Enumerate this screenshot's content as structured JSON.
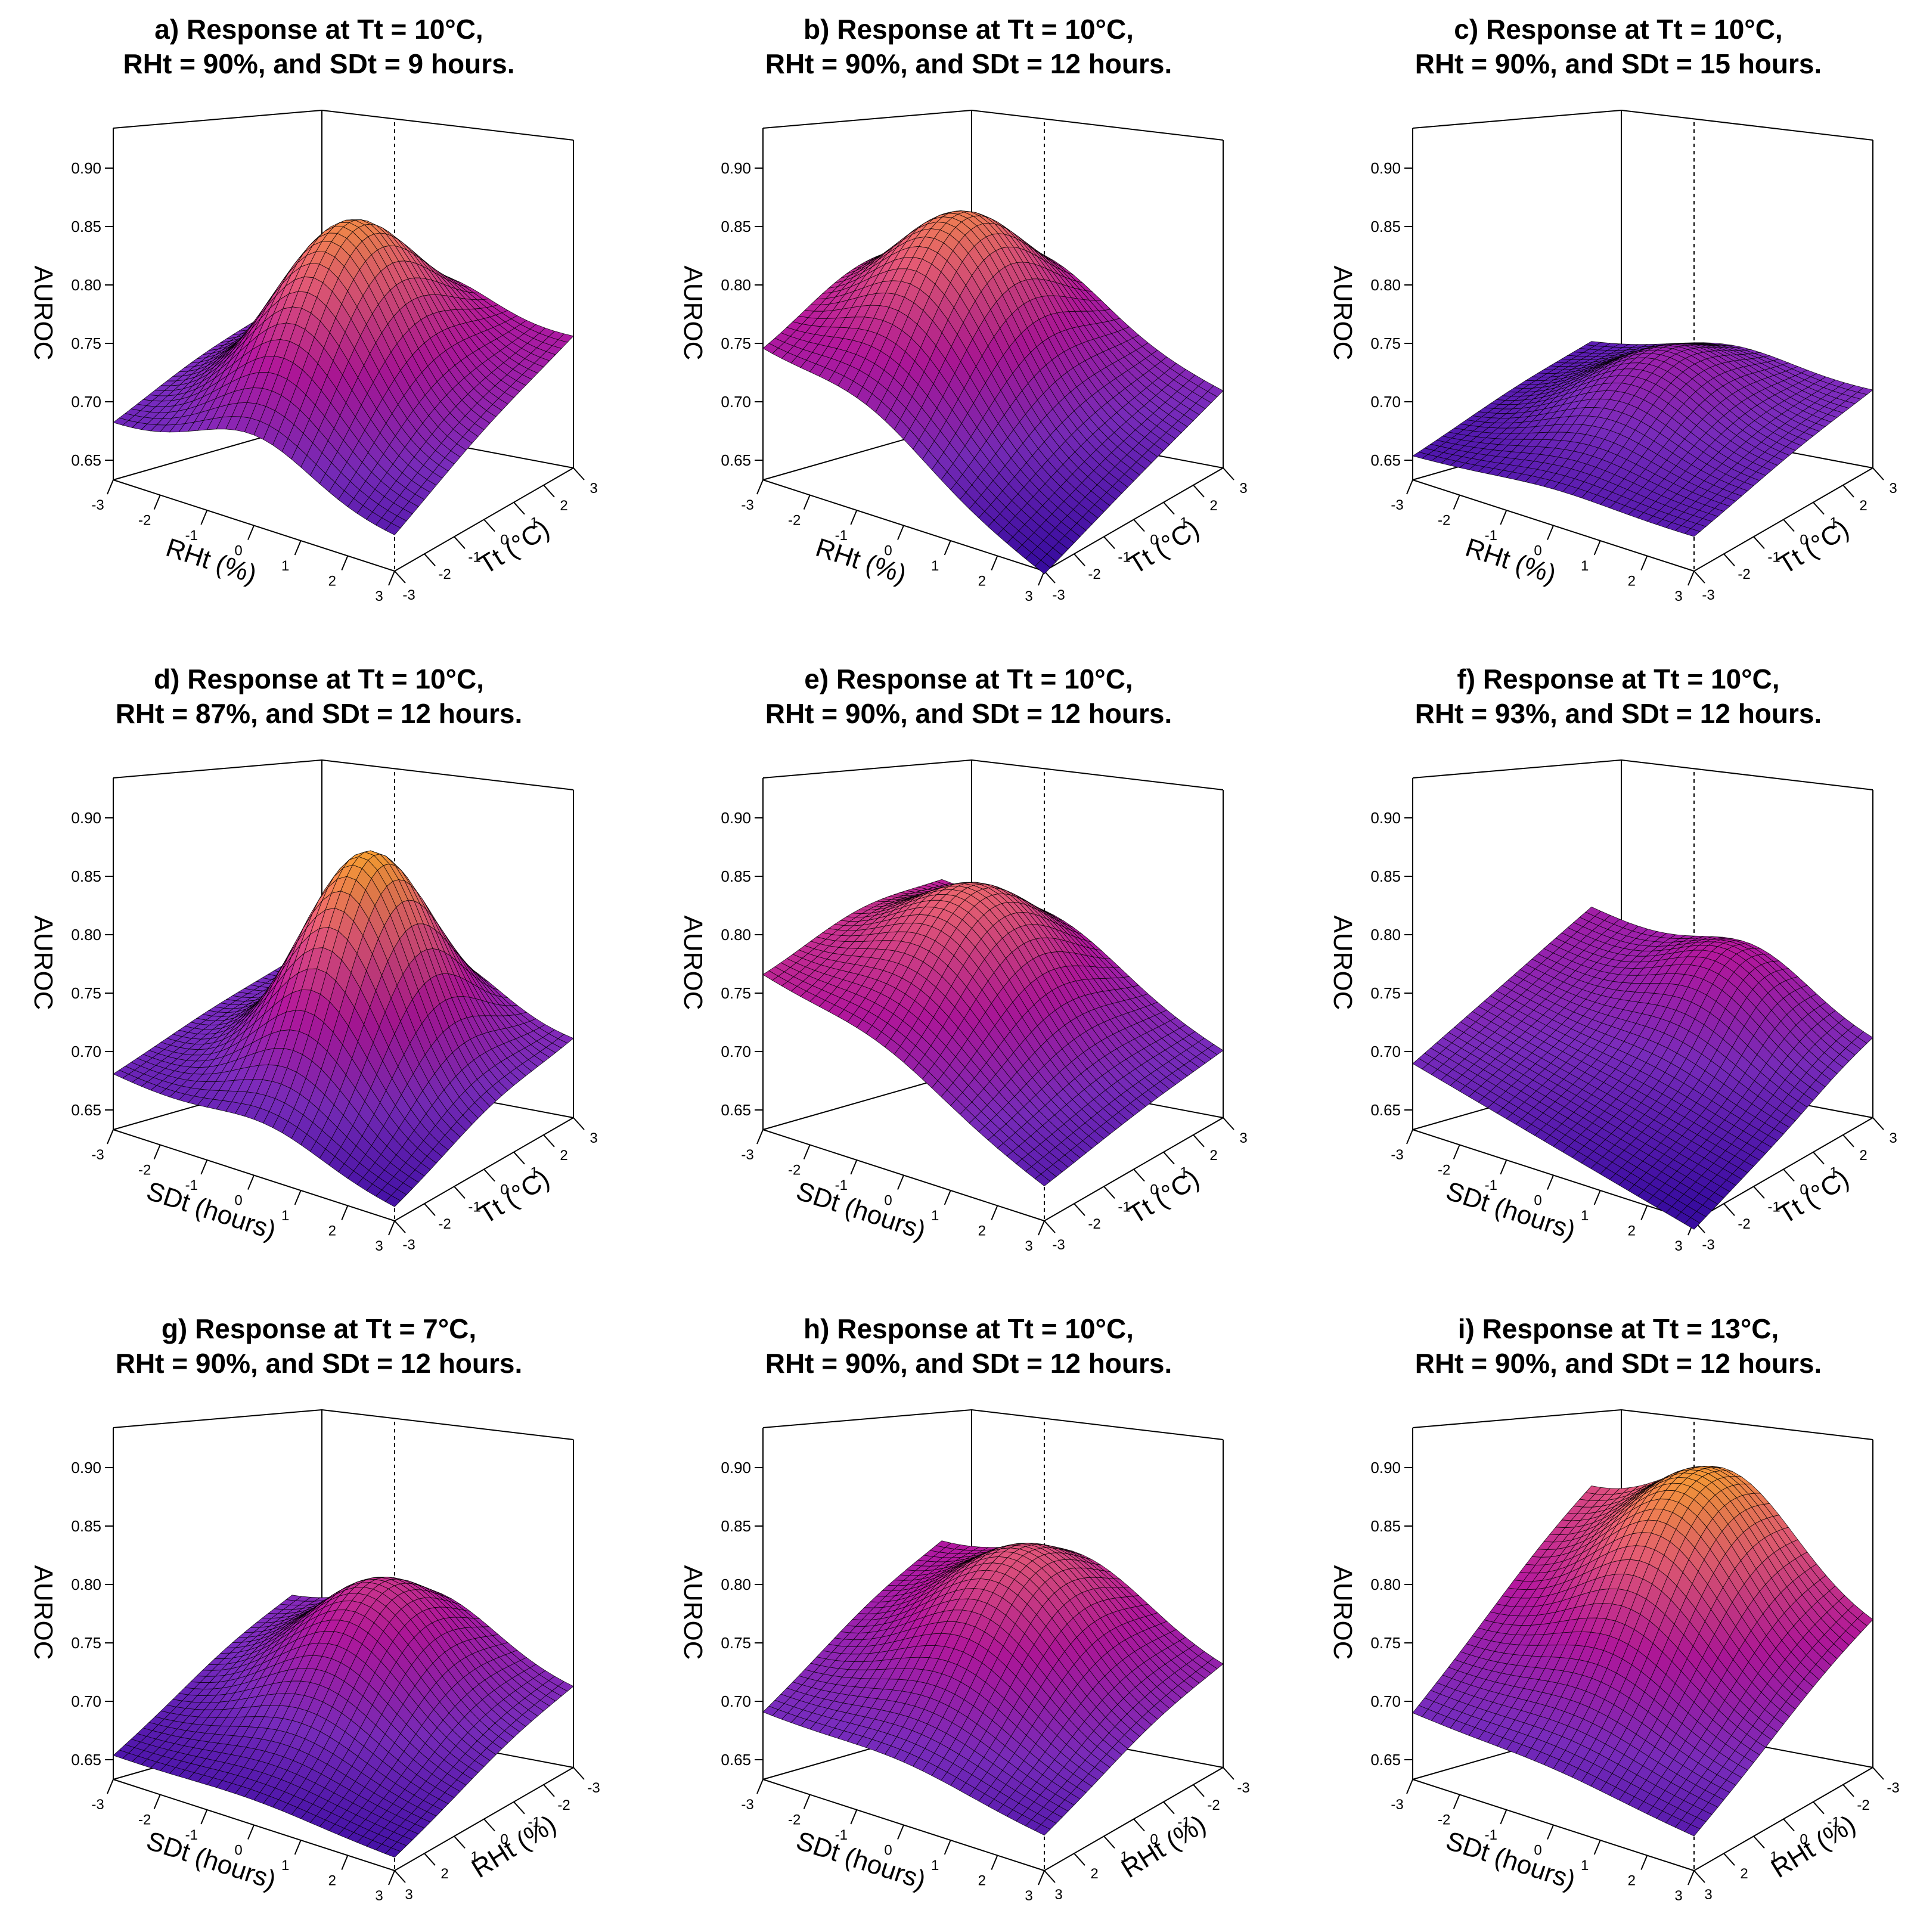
{
  "chart_data": [
    {
      "type": "surface",
      "title_line1": "a) Response at Tt = 10°C,",
      "title_line2": "RHt = 90%, and SDt = 9 hours.",
      "zlabel": "AUROC",
      "xlabel": "RHt (%)",
      "ylabel": "Tt (°C)",
      "z_ticks": [
        "0.90",
        "0.85",
        "0.80",
        "0.75",
        "0.70",
        "0.65"
      ],
      "x_ticks": [
        "-3",
        "-2",
        "-1",
        "0",
        "1",
        "2",
        "3"
      ],
      "y_ticks": [
        "-3",
        "-2",
        "-1",
        "0",
        "1",
        "2",
        "3"
      ],
      "zlim": [
        0.63,
        0.92
      ],
      "corners": {
        "x_min_y_min": 0.68,
        "x_max_y_min": 0.66,
        "x_min_y_max": 0.7,
        "x_max_y_max": 0.75
      },
      "peak": {
        "x": 0.0,
        "y": 0.0,
        "z": 0.86
      },
      "spread": [
        1.7,
        2.6
      ]
    },
    {
      "type": "surface",
      "title_line1": "b) Response at Tt = 10°C,",
      "title_line2": "RHt = 90%, and SDt = 12 hours.",
      "zlabel": "AUROC",
      "xlabel": "RHt (%)",
      "ylabel": "Tt (°C)",
      "z_ticks": [
        "0.90",
        "0.85",
        "0.80",
        "0.75",
        "0.70",
        "0.65"
      ],
      "x_ticks": [
        "-3",
        "-2",
        "-1",
        "0",
        "1",
        "2",
        "3"
      ],
      "y_ticks": [
        "-3",
        "-2",
        "-1",
        "0",
        "1",
        "2",
        "3"
      ],
      "zlim": [
        0.63,
        0.92
      ],
      "corners": {
        "x_min_y_min": 0.745,
        "x_max_y_min": 0.625,
        "x_min_y_max": 0.75,
        "x_max_y_max": 0.7
      },
      "peak": {
        "x": -0.8,
        "y": 0.2,
        "z": 0.85
      },
      "spread": [
        1.8,
        2.6
      ]
    },
    {
      "type": "surface",
      "title_line1": "c) Response at Tt = 10°C,",
      "title_line2": "RHt = 90%, and SDt = 15 hours.",
      "zlabel": "AUROC",
      "xlabel": "RHt (%)",
      "ylabel": "Tt (°C)",
      "z_ticks": [
        "0.90",
        "0.85",
        "0.80",
        "0.75",
        "0.70",
        "0.65"
      ],
      "x_ticks": [
        "-3",
        "-2",
        "-1",
        "0",
        "1",
        "2",
        "3"
      ],
      "y_ticks": [
        "-3",
        "-2",
        "-1",
        "0",
        "1",
        "2",
        "3"
      ],
      "zlim": [
        0.63,
        0.92
      ],
      "corners": {
        "x_min_y_min": 0.65,
        "x_max_y_min": 0.66,
        "x_min_y_max": 0.66,
        "x_max_y_max": 0.7
      },
      "peak": {
        "x": 0.0,
        "y": 0.5,
        "z": 0.73
      },
      "spread": [
        1.8,
        2.4
      ]
    },
    {
      "type": "surface",
      "title_line1": "d) Response at Tt = 10°C,",
      "title_line2": "RHt = 87%, and SDt = 12 hours.",
      "zlabel": "AUROC",
      "xlabel": "SDt (hours)",
      "ylabel": "Tt (°C)",
      "z_ticks": [
        "0.90",
        "0.85",
        "0.80",
        "0.75",
        "0.70",
        "0.65"
      ],
      "x_ticks": [
        "-3",
        "-2",
        "-1",
        "0",
        "1",
        "2",
        "3"
      ],
      "y_ticks": [
        "-3",
        "-2",
        "-1",
        "0",
        "1",
        "2",
        "3"
      ],
      "zlim": [
        0.63,
        0.92
      ],
      "corners": {
        "x_min_y_min": 0.68,
        "x_max_y_min": 0.64,
        "x_min_y_max": 0.69,
        "x_max_y_max": 0.7
      },
      "peak": {
        "x": 0.3,
        "y": 0.3,
        "z": 0.88
      },
      "spread": [
        1.6,
        2.2
      ]
    },
    {
      "type": "surface",
      "title_line1": "e) Response at Tt = 10°C,",
      "title_line2": "RHt = 90%, and SDt = 12 hours.",
      "zlabel": "AUROC",
      "xlabel": "SDt (hours)",
      "ylabel": "Tt (°C)",
      "z_ticks": [
        "0.90",
        "0.85",
        "0.80",
        "0.75",
        "0.70",
        "0.65"
      ],
      "x_ticks": [
        "-3",
        "-2",
        "-1",
        "0",
        "1",
        "2",
        "3"
      ],
      "y_ticks": [
        "-3",
        "-2",
        "-1",
        "0",
        "1",
        "2",
        "3"
      ],
      "zlim": [
        0.63,
        0.92
      ],
      "corners": {
        "x_min_y_min": 0.77,
        "x_max_y_min": 0.66,
        "x_min_y_max": 0.76,
        "x_max_y_max": 0.69
      },
      "peak": {
        "x": -0.5,
        "y": 0.3,
        "z": 0.83
      },
      "spread": [
        1.9,
        2.6
      ]
    },
    {
      "type": "surface",
      "title_line1": "f) Response at Tt = 10°C,",
      "title_line2": "RHt = 93%, and SDt = 12 hours.",
      "zlabel": "AUROC",
      "xlabel": "SDt (hours)",
      "ylabel": "Tt (°C)",
      "z_ticks": [
        "0.90",
        "0.85",
        "0.80",
        "0.75",
        "0.70",
        "0.65"
      ],
      "x_ticks": [
        "-3",
        "-2",
        "-1",
        "0",
        "1",
        "2",
        "3"
      ],
      "y_ticks": [
        "-3",
        "-2",
        "-1",
        "0",
        "1",
        "2",
        "3"
      ],
      "zlim": [
        0.63,
        0.92
      ],
      "corners": {
        "x_min_y_min": 0.69,
        "x_max_y_min": 0.62,
        "x_min_y_max": 0.74,
        "x_max_y_max": 0.7
      },
      "peak": {
        "x": 0.5,
        "y": 2.0,
        "z": 0.76
      },
      "spread": [
        1.6,
        1.6
      ]
    },
    {
      "type": "surface",
      "title_line1": "g) Response at Tt = 7°C,",
      "title_line2": "RHt = 90%, and SDt = 12 hours.",
      "zlabel": "AUROC",
      "xlabel": "SDt (hours)",
      "ylabel": "RHt (%)",
      "z_ticks": [
        "0.90",
        "0.85",
        "0.80",
        "0.75",
        "0.70",
        "0.65"
      ],
      "x_ticks": [
        "-3",
        "-2",
        "-1",
        "0",
        "1",
        "2",
        "3"
      ],
      "y_ticks": [
        "3",
        "2",
        "1",
        "0",
        "-1",
        "-2",
        "-3"
      ],
      "zlim": [
        0.63,
        0.92
      ],
      "corners": {
        "x_min_y_min": 0.65,
        "x_max_y_min": 0.64,
        "x_min_y_max": 0.7,
        "x_max_y_max": 0.7
      },
      "peak": {
        "x": 0.0,
        "y": 1.0,
        "z": 0.785
      },
      "spread": [
        1.9,
        2.4
      ]
    },
    {
      "type": "surface",
      "title_line1": "h) Response at Tt = 10°C,",
      "title_line2": "RHt = 90%, and SDt = 12 hours.",
      "zlabel": "AUROC",
      "xlabel": "SDt (hours)",
      "ylabel": "RHt (%)",
      "z_ticks": [
        "0.90",
        "0.85",
        "0.80",
        "0.75",
        "0.70",
        "0.65"
      ],
      "x_ticks": [
        "-3",
        "-2",
        "-1",
        "0",
        "1",
        "2",
        "3"
      ],
      "y_ticks": [
        "3",
        "2",
        "1",
        "0",
        "-1",
        "-2",
        "-3"
      ],
      "zlim": [
        0.63,
        0.92
      ],
      "corners": {
        "x_min_y_min": 0.69,
        "x_max_y_min": 0.66,
        "x_min_y_max": 0.75,
        "x_max_y_max": 0.72
      },
      "peak": {
        "x": 0.0,
        "y": 0.8,
        "z": 0.815
      },
      "spread": [
        2.0,
        2.6
      ]
    },
    {
      "type": "surface",
      "title_line1": "i) Response at Tt = 13°C,",
      "title_line2": "RHt = 90%, and SDt = 12 hours.",
      "zlabel": "AUROC",
      "xlabel": "SDt (hours)",
      "ylabel": "RHt (%)",
      "z_ticks": [
        "0.90",
        "0.85",
        "0.80",
        "0.75",
        "0.70",
        "0.65"
      ],
      "x_ticks": [
        "-3",
        "-2",
        "-1",
        "0",
        "1",
        "2",
        "3"
      ],
      "y_ticks": [
        "3",
        "2",
        "1",
        "0",
        "-1",
        "-2",
        "-3"
      ],
      "zlim": [
        0.63,
        0.92
      ],
      "corners": {
        "x_min_y_min": 0.69,
        "x_max_y_min": 0.66,
        "x_min_y_max": 0.8,
        "x_max_y_max": 0.76
      },
      "peak": {
        "x": 0.0,
        "y": 1.5,
        "z": 0.87
      },
      "spread": [
        1.9,
        2.6
      ]
    }
  ],
  "colors": {
    "low": "#3a0ca3",
    "mid1": "#7b2cbf",
    "mid2": "#b5179e",
    "mid3": "#e85d75",
    "high": "#f9a825",
    "mesh": "#000000"
  }
}
